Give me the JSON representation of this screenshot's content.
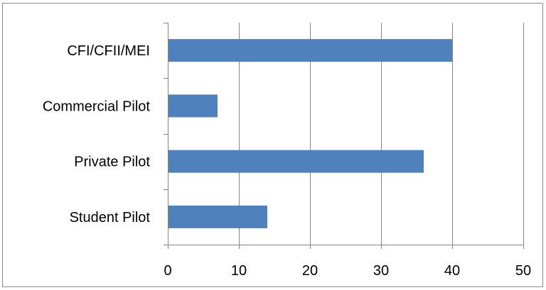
{
  "chart_data": {
    "type": "bar",
    "orientation": "horizontal",
    "title": "",
    "xlabel": "",
    "ylabel": "",
    "categories": [
      "Student Pilot",
      "Private Pilot",
      "Commercial Pilot",
      "CFI/CFII/MEI"
    ],
    "values": [
      14,
      36,
      7,
      40
    ],
    "xlim": [
      0,
      50
    ],
    "xticks": [
      0,
      10,
      20,
      30,
      40,
      50
    ],
    "grid": "vertical",
    "legend": "none",
    "colors": {
      "bar": "#4f81bd",
      "grid": "#868686",
      "axis": "#868686",
      "frame": "#8c8c8c"
    }
  }
}
